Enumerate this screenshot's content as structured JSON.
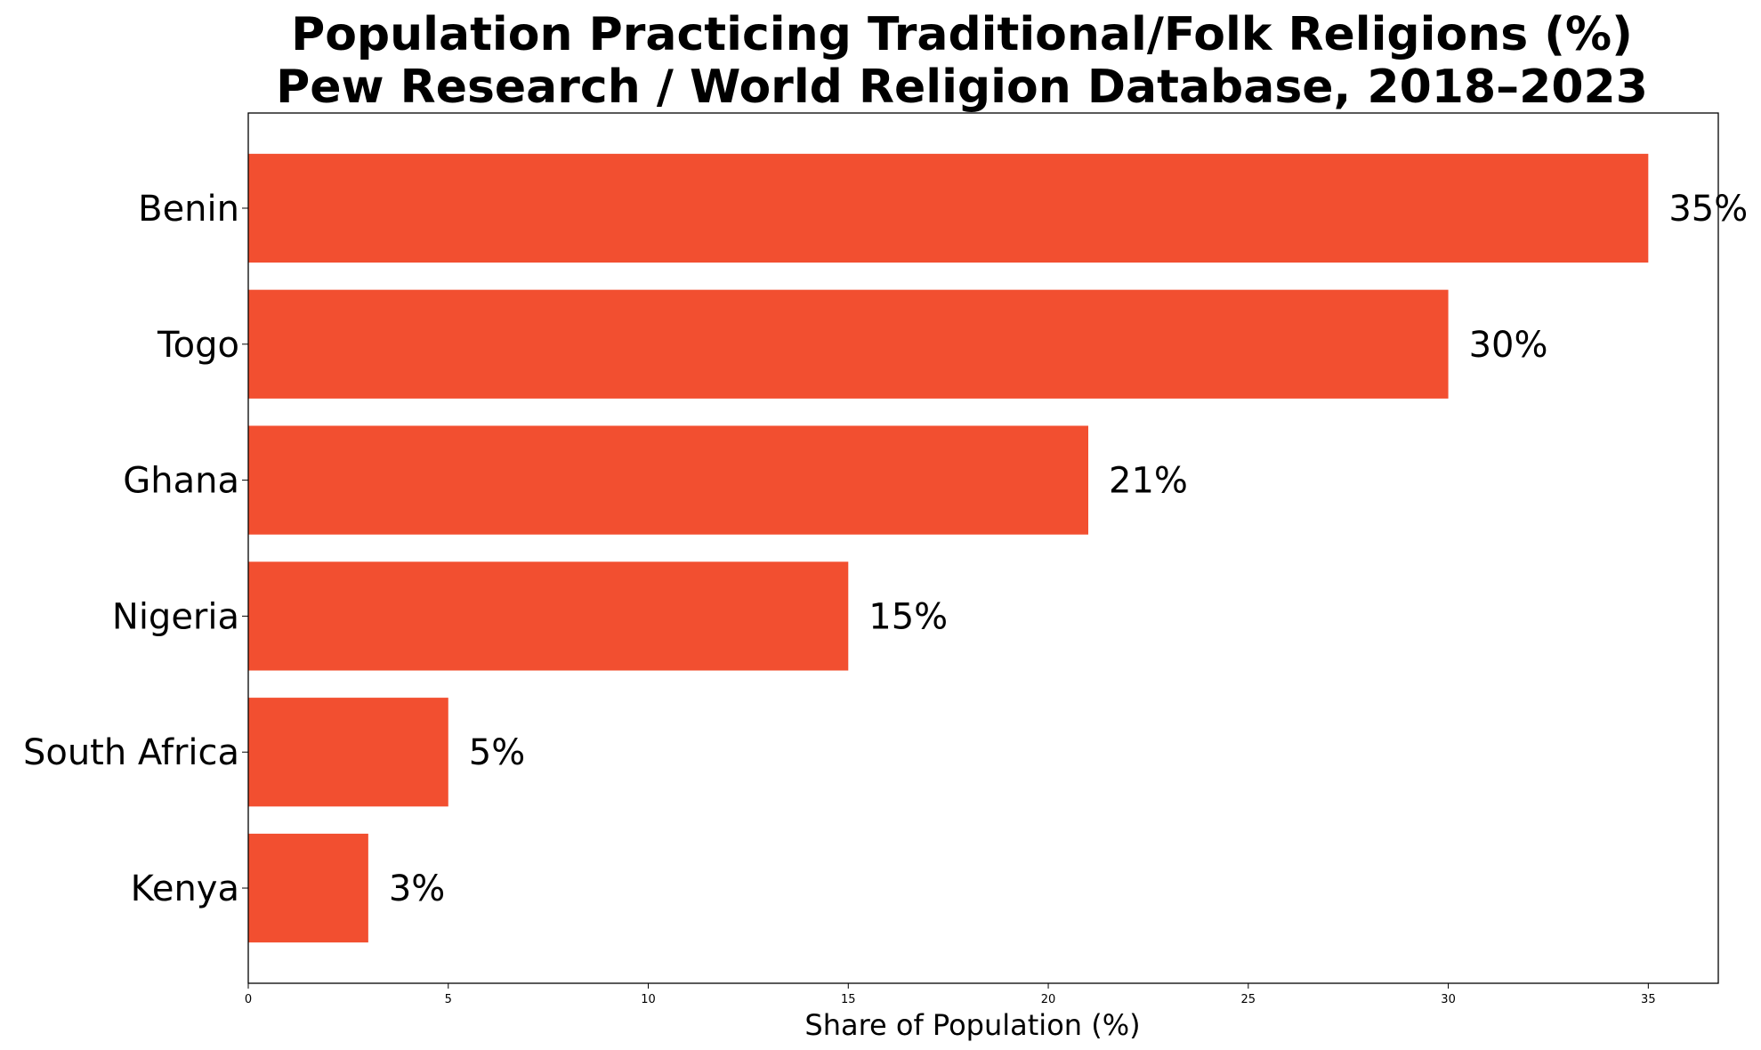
{
  "chart_data": {
    "type": "bar",
    "orientation": "horizontal",
    "title": "Population Practicing Traditional/Folk Religions (%)",
    "subtitle": "Pew Research / World Religion Database, 2018–2023",
    "xlabel": "Share of Population (%)",
    "ylabel": "",
    "categories": [
      "Benin",
      "Togo",
      "Ghana",
      "Nigeria",
      "South Africa",
      "Kenya"
    ],
    "values": [
      35,
      30,
      21,
      15,
      5,
      3
    ],
    "value_labels": [
      "35%",
      "30%",
      "21%",
      "15%",
      "5%",
      "3%"
    ],
    "xlim": [
      0,
      36.75
    ],
    "xticks": [
      0,
      5,
      10,
      15,
      20,
      25,
      30,
      35
    ],
    "xtick_labels": [
      "0",
      "5",
      "10",
      "15",
      "20",
      "25",
      "30",
      "35"
    ],
    "bar_color": "#f24f30",
    "grid": false,
    "legend": "none"
  }
}
